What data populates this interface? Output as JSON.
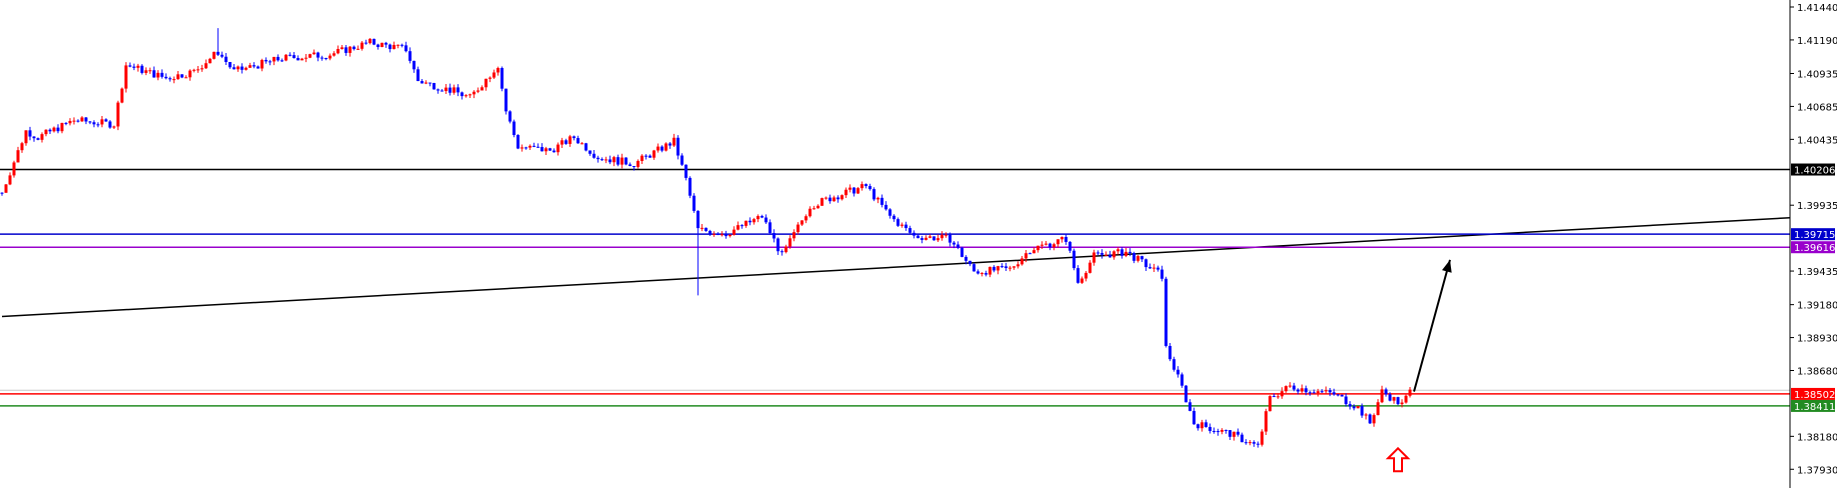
{
  "chart_data": {
    "type": "candlestick",
    "title": "",
    "xlabel": "",
    "ylabel": "",
    "ylim": [
      1.3782,
      1.4149
    ],
    "grid": false,
    "y_ticks": [
      "1.41440",
      "1.41190",
      "1.40935",
      "1.40685",
      "1.40435",
      "1.39935",
      "1.39435",
      "1.39180",
      "1.38930",
      "1.38680",
      "1.38180",
      "1.37930"
    ],
    "colors": {
      "bull": "#ff0000",
      "bear": "#0000ff",
      "axis": "#000000",
      "background": "#ffffff"
    },
    "close_path": [
      [
        0,
        1.4003
      ],
      [
        6,
        1.405
      ],
      [
        9,
        1.4045
      ],
      [
        18,
        1.4058
      ],
      [
        28,
        1.4055
      ],
      [
        31,
        1.41
      ],
      [
        41,
        1.409
      ],
      [
        48,
        1.4095
      ],
      [
        54,
        1.411
      ],
      [
        58,
        1.4095
      ],
      [
        70,
        1.4105
      ],
      [
        82,
        1.4108
      ],
      [
        92,
        1.4117
      ],
      [
        101,
        1.4112
      ],
      [
        104,
        1.4088
      ],
      [
        113,
        1.408
      ],
      [
        117,
        1.4075
      ],
      [
        124,
        1.41
      ],
      [
        126,
        1.4065
      ],
      [
        129,
        1.4038
      ],
      [
        137,
        1.4035
      ],
      [
        143,
        1.4045
      ],
      [
        149,
        1.403
      ],
      [
        158,
        1.4025
      ],
      [
        168,
        1.4042
      ],
      [
        171,
        1.4013
      ],
      [
        174,
        1.3975
      ],
      [
        181,
        1.3972
      ],
      [
        190,
        1.3985
      ],
      [
        195,
        1.3955
      ],
      [
        202,
        1.3993
      ],
      [
        208,
        1.4
      ],
      [
        216,
        1.4008
      ],
      [
        222,
        1.3985
      ],
      [
        228,
        1.397
      ],
      [
        237,
        1.3968
      ],
      [
        243,
        1.3943
      ],
      [
        252,
        1.3945
      ],
      [
        257,
        1.396
      ],
      [
        266,
        1.3968
      ],
      [
        269,
        1.3935
      ],
      [
        273,
        1.3955
      ],
      [
        281,
        1.3958
      ],
      [
        290,
        1.394
      ],
      [
        291,
        1.3885
      ],
      [
        295,
        1.3855
      ],
      [
        298,
        1.3828
      ],
      [
        307,
        1.382
      ],
      [
        314,
        1.381
      ],
      [
        317,
        1.3847
      ],
      [
        322,
        1.3856
      ],
      [
        333,
        1.385
      ],
      [
        339,
        1.384
      ],
      [
        342,
        1.3828
      ],
      [
        345,
        1.3852
      ],
      [
        350,
        1.3842
      ],
      [
        352,
        1.3852
      ]
    ],
    "spike_lows": [
      [
        174,
        1.3925
      ],
      [
        54,
        1.4128
      ]
    ],
    "horizontal_lines": [
      {
        "price": 1.40206,
        "label": "1.40206",
        "color": "#000000"
      },
      {
        "price": 1.39715,
        "label": "1.39715",
        "color": "#0000cc"
      },
      {
        "price": 1.39616,
        "label": "1.39616",
        "color": "#9900cc"
      },
      {
        "price": 1.3853,
        "label": "",
        "color": "#c8c8c8"
      },
      {
        "price": 1.38502,
        "label": "1.38502",
        "color": "#ff0000"
      },
      {
        "price": 1.38411,
        "label": "1.38411",
        "color": "#228b22"
      }
    ],
    "trendline": [
      [
        0,
        1.3909
      ],
      [
        447,
        1.3984
      ]
    ],
    "projection_arrow": {
      "from": [
        353,
        1.3852
      ],
      "to": [
        362,
        1.3952
      ],
      "color": "#000000"
    },
    "up_arrow_marker": {
      "bar": 349,
      "price": 1.3815,
      "color": "#ff0000"
    }
  }
}
